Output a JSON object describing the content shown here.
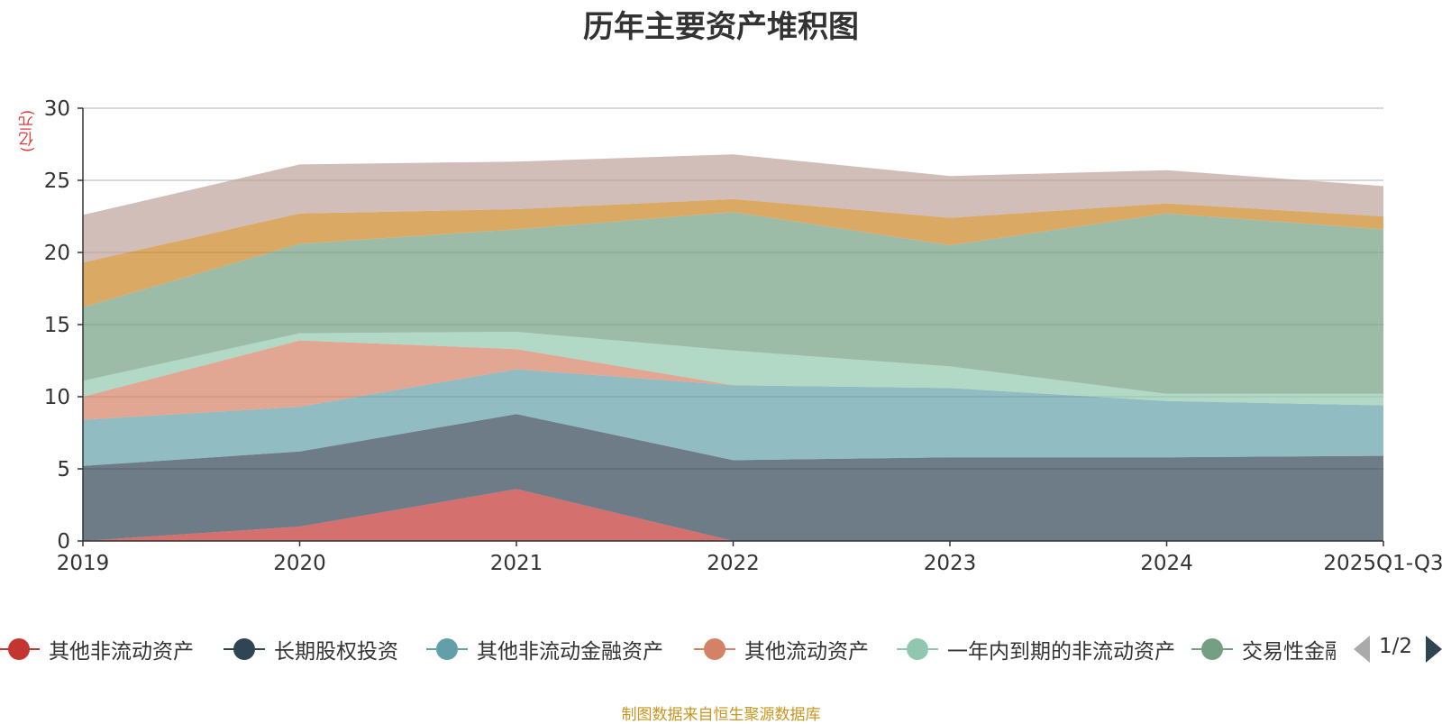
{
  "chart_data": {
    "type": "area",
    "stacked": true,
    "title": "历年主要资产堆积图",
    "ylabel": "(亿元)",
    "xlabel": "",
    "categories": [
      "2019",
      "2020",
      "2021",
      "2022",
      "2023",
      "2024",
      "2025Q1-Q3"
    ],
    "ylim": [
      0,
      30
    ],
    "yticks": [
      0,
      5,
      10,
      15,
      20,
      25,
      30
    ],
    "grid": true,
    "series": [
      {
        "name": "其他非流动资产",
        "color": "#c23531",
        "values": [
          0.0,
          1.0,
          3.6,
          0.0,
          0.0,
          0.0,
          0.0
        ]
      },
      {
        "name": "长期股权投资",
        "color": "#2f4554",
        "values": [
          5.2,
          5.2,
          5.2,
          5.6,
          5.8,
          5.8,
          5.9
        ]
      },
      {
        "name": "其他非流动金融资产",
        "color": "#61a0a8",
        "values": [
          3.2,
          3.1,
          3.1,
          5.2,
          4.8,
          3.9,
          3.5
        ]
      },
      {
        "name": "其他流动资产",
        "color": "#d48265",
        "values": [
          1.6,
          4.6,
          1.4,
          0.0,
          0.0,
          0.0,
          0.0
        ]
      },
      {
        "name": "一年内到期的非流动资产",
        "color": "#91c7ae",
        "values": [
          1.1,
          0.5,
          1.2,
          2.4,
          1.5,
          0.5,
          0.8
        ]
      },
      {
        "name": "交易性金融资产",
        "color": "#749f83",
        "values": [
          5.1,
          6.2,
          7.1,
          9.6,
          8.4,
          12.5,
          11.4
        ]
      },
      {
        "name": "",
        "color": "#ca8622",
        "values": [
          3.1,
          2.1,
          1.4,
          0.9,
          1.9,
          0.7,
          0.9
        ]
      },
      {
        "name": "",
        "color": "#bda29a",
        "values": [
          3.3,
          3.4,
          3.3,
          3.1,
          2.9,
          2.3,
          2.1
        ]
      }
    ],
    "legend_position": "bottom"
  },
  "legend": {
    "items": [
      {
        "label": "其他非流动资产",
        "color": "#c23531"
      },
      {
        "label": "长期股权投资",
        "color": "#2f4554"
      },
      {
        "label": "其他非流动金融资产",
        "color": "#61a0a8"
      },
      {
        "label": "其他流动资产",
        "color": "#d48265"
      },
      {
        "label": "一年内到期的非流动资产",
        "color": "#91c7ae"
      },
      {
        "label": "交易性金融资产",
        "color": "#749f83"
      }
    ],
    "page": "1/2"
  },
  "source": "制图数据来自恒生聚源数据库"
}
